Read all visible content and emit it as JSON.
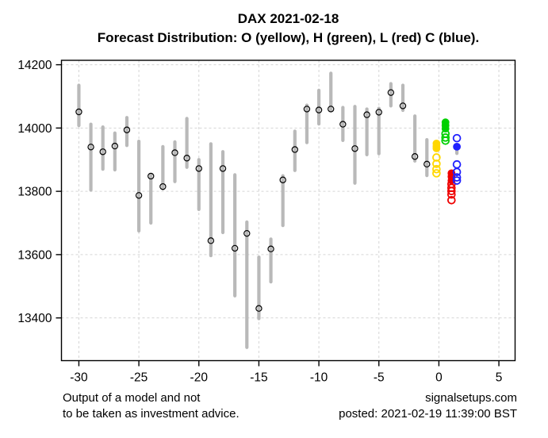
{
  "title": "DAX 2021-02-18",
  "subtitle": "Forecast Distribution: O (yellow), H (green), L (red) C (blue).",
  "footnote_line1": "Output of a model and not",
  "footnote_line2": "to be taken as investment advice.",
  "credit": "signalsetups.com",
  "posted": "posted: 2021-02-19 11:39:00 BST",
  "colors": {
    "bar": "#b9b9b9",
    "marker_outline": "#000000",
    "grid": "#d5d5d5",
    "axis": "#000000",
    "open": "#ffd700",
    "high": "#00d000",
    "low": "#ee0000",
    "close": "#2020ff"
  },
  "chart_data": {
    "type": "hlc-range-bars-with-forecast-scatter",
    "title": "DAX 2021-02-18",
    "subtitle": "Forecast Distribution: O (yellow), H (green), L (red) C (blue).",
    "grid": "dashed",
    "x_axis": {
      "ticks": [
        -30,
        -25,
        -20,
        -15,
        -10,
        -5,
        0,
        5
      ],
      "range": [
        -31.45,
        6.35
      ]
    },
    "y_axis": {
      "ticks": [
        14200,
        14000,
        13800,
        13600,
        13400
      ],
      "range": [
        13265,
        14214
      ]
    },
    "history": {
      "x": [
        -30,
        -29,
        -28,
        -27,
        -26,
        -25,
        -24,
        -23,
        -22,
        -21,
        -20,
        -19,
        -18,
        -17,
        -16,
        -15,
        -14,
        -13,
        -12,
        -11,
        -10,
        -9,
        -8,
        -7,
        -6,
        -5,
        -4,
        -3,
        -2,
        -1
      ],
      "high": [
        14135,
        14012,
        14003,
        13984,
        14033,
        13958,
        13852,
        13941,
        13956,
        14030,
        13900,
        13950,
        13925,
        13852,
        13703,
        13592,
        13649,
        13849,
        13990,
        14072,
        14119,
        14173,
        14065,
        14068,
        14060,
        14062,
        14140,
        14135,
        14038,
        13963
      ],
      "low": [
        14008,
        13804,
        13870,
        13868,
        13945,
        13675,
        13700,
        13808,
        13831,
        13876,
        13743,
        13597,
        13670,
        13470,
        13307,
        13398,
        13514,
        13692,
        13866,
        13954,
        14013,
        14056,
        13961,
        13826,
        13916,
        13919,
        14070,
        14056,
        13896,
        13850
      ],
      "close": [
        14051,
        13940,
        13925,
        13943,
        13994,
        13787,
        13848,
        13815,
        13922,
        13905,
        13872,
        13644,
        13872,
        13620,
        13667,
        13430,
        13618,
        13836,
        13932,
        14060,
        14057,
        14060,
        14012,
        13935,
        14042,
        14050,
        14112,
        14070,
        13910,
        13886
      ]
    },
    "forecast": {
      "open": {
        "label": "O",
        "x": -0.2,
        "filled": [
          13951,
          13943,
          13936
        ],
        "open_circles": [
          13907,
          13887,
          13870,
          13857
        ]
      },
      "high": {
        "label": "H",
        "x": 0.55,
        "filled": [
          14018,
          14008,
          13998
        ],
        "open_circles": [
          13982,
          13970,
          13960
        ]
      },
      "low": {
        "label": "L",
        "x": 1.05,
        "filled": [
          13857,
          13846,
          13834
        ],
        "open_circles": [
          13823,
          13811,
          13801,
          13790,
          13772
        ]
      },
      "close": {
        "label": "C",
        "x": 1.5,
        "filled": [
          13941
        ],
        "open_circles": [
          13968,
          13885,
          13861,
          13844,
          13834
        ]
      },
      "stub_bar": {
        "x": 1.5,
        "high": 13947,
        "low": 13920
      }
    }
  }
}
